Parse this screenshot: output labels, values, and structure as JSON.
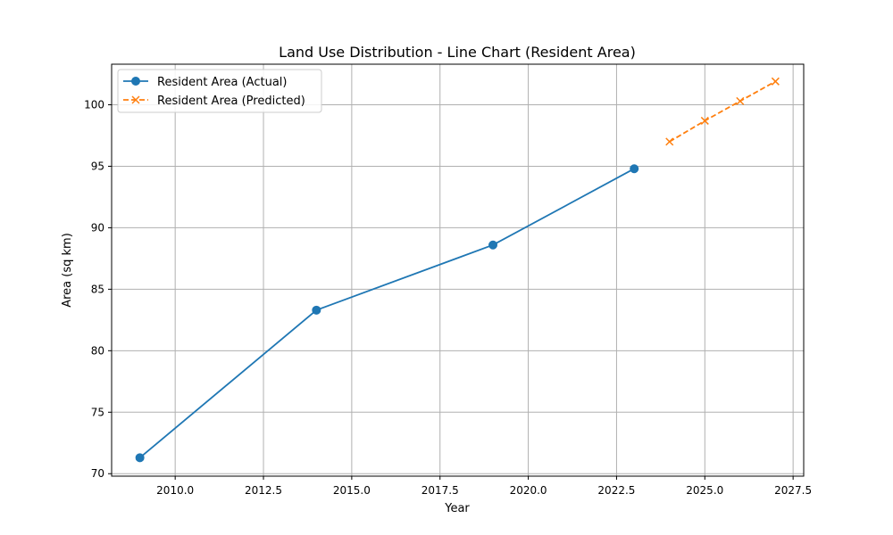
{
  "chart_data": {
    "type": "line",
    "title": "Land Use Distribution - Line Chart (Resident Area)",
    "xlabel": "Year",
    "ylabel": "Area (sq km)",
    "xlim": [
      2008.2,
      2027.8
    ],
    "ylim": [
      69.8,
      103.3
    ],
    "x_ticks": [
      2010,
      2012.5,
      2015,
      2017.5,
      2020,
      2022.5,
      2025,
      2027.5
    ],
    "x_tick_labels": [
      "2010.0",
      "2012.5",
      "2015.0",
      "2017.5",
      "2020.0",
      "2022.5",
      "2025.0",
      "2027.5"
    ],
    "y_ticks": [
      70,
      75,
      80,
      85,
      90,
      95,
      100
    ],
    "y_tick_labels": [
      "70",
      "75",
      "80",
      "85",
      "90",
      "95",
      "100"
    ],
    "grid": true,
    "legend_position": "top-left",
    "series": [
      {
        "name": "Resident Area (Actual)",
        "color": "#1f77b4",
        "line_style": "solid",
        "marker": "circle",
        "x": [
          2009,
          2014,
          2019,
          2023
        ],
        "y": [
          71.3,
          83.3,
          88.6,
          94.8
        ]
      },
      {
        "name": "Resident Area (Predicted)",
        "color": "#ff7f0e",
        "line_style": "dashed",
        "marker": "x",
        "x": [
          2024,
          2025,
          2026,
          2027
        ],
        "y": [
          97.0,
          98.7,
          100.3,
          101.9
        ]
      }
    ]
  }
}
